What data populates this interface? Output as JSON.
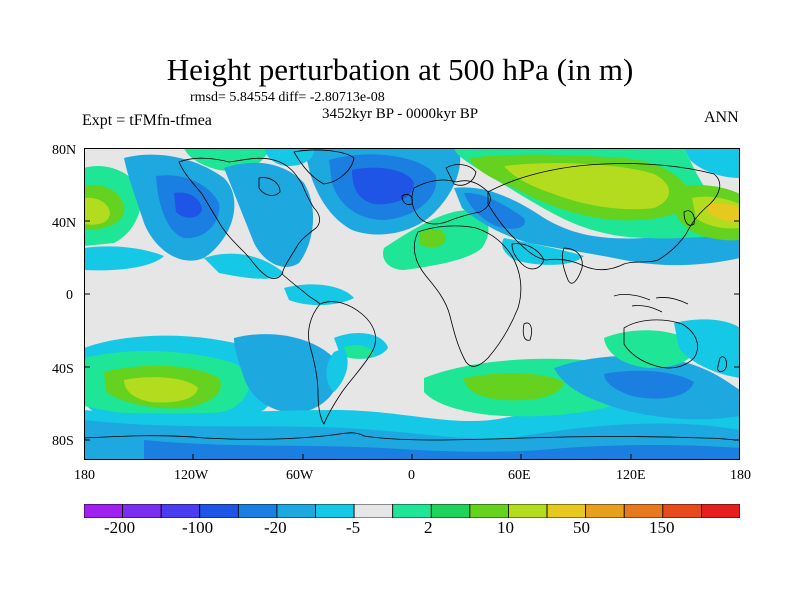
{
  "figure": {
    "title": "Height perturbation at 500 hPa (in m)",
    "stats": "rmsd= 5.84554 diff= -2.80713e-08",
    "period": "3452kyr BP - 0000kyr BP",
    "left_label": "Expt = tFMfn-tfmea",
    "right_label": "ANN"
  },
  "axes": {
    "lat_ticks": [
      "80N",
      "40N",
      "0",
      "40S",
      "80S"
    ],
    "lon_ticks": [
      "180",
      "120W",
      "60W",
      "0",
      "60E",
      "120E",
      "180"
    ]
  },
  "colorbar": {
    "labels": [
      "-200",
      "-100",
      "-20",
      "-5",
      "2",
      "10",
      "50",
      "150"
    ],
    "colors": [
      "#a020f0",
      "#7a2ef0",
      "#4a3df0",
      "#1e55e6",
      "#1a7fe0",
      "#1ea8e0",
      "#14c8e6",
      "#e6e6e6",
      "#1ee696",
      "#1ed25a",
      "#64d21e",
      "#b4dc1e",
      "#e6c81e",
      "#e6a01e",
      "#e6781e",
      "#e64b1e",
      "#e61e1e"
    ]
  },
  "map_style": {
    "background": "#e6e6e6",
    "coast_color": "#000000"
  }
}
